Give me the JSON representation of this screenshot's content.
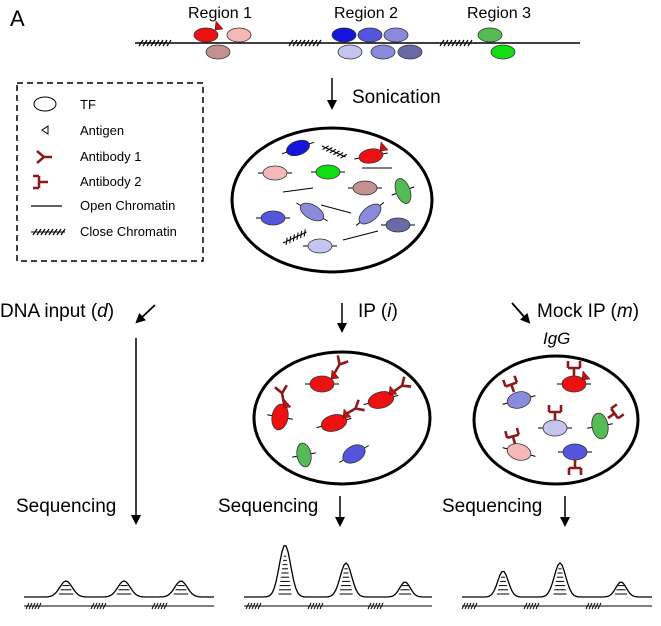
{
  "panel_label": "A",
  "regions": [
    "Region 1",
    "Region 2",
    "Region 3"
  ],
  "step_sonication": "Sonication",
  "legend": {
    "items": [
      "TF",
      "Antigen",
      "Antibody 1",
      "Antibody 2",
      "Open Chromatin",
      "Close Chromatin"
    ]
  },
  "branches": {
    "dna_input": {
      "prefix": "DNA input (",
      "var": "d",
      "suffix": ")"
    },
    "ip": {
      "prefix": "IP (",
      "var": "i",
      "suffix": ")"
    },
    "mock_ip": {
      "prefix": "Mock IP (",
      "var": "m",
      "suffix": ")"
    }
  },
  "igg_label": "IgG",
  "sequencing_label": "Sequencing",
  "colors": {
    "red": "#ee1111",
    "pink": "#f4b8b8",
    "rosy": "#c49090",
    "blue": "#1515dd",
    "indigo": "#5555dd",
    "periwinkle": "#8b8bdd",
    "lavender": "#c4c4ee",
    "slate": "#6a6aa6",
    "green_light": "#55bb55",
    "green_bright": "#11dd11",
    "antibody": "#8b1a1a"
  }
}
